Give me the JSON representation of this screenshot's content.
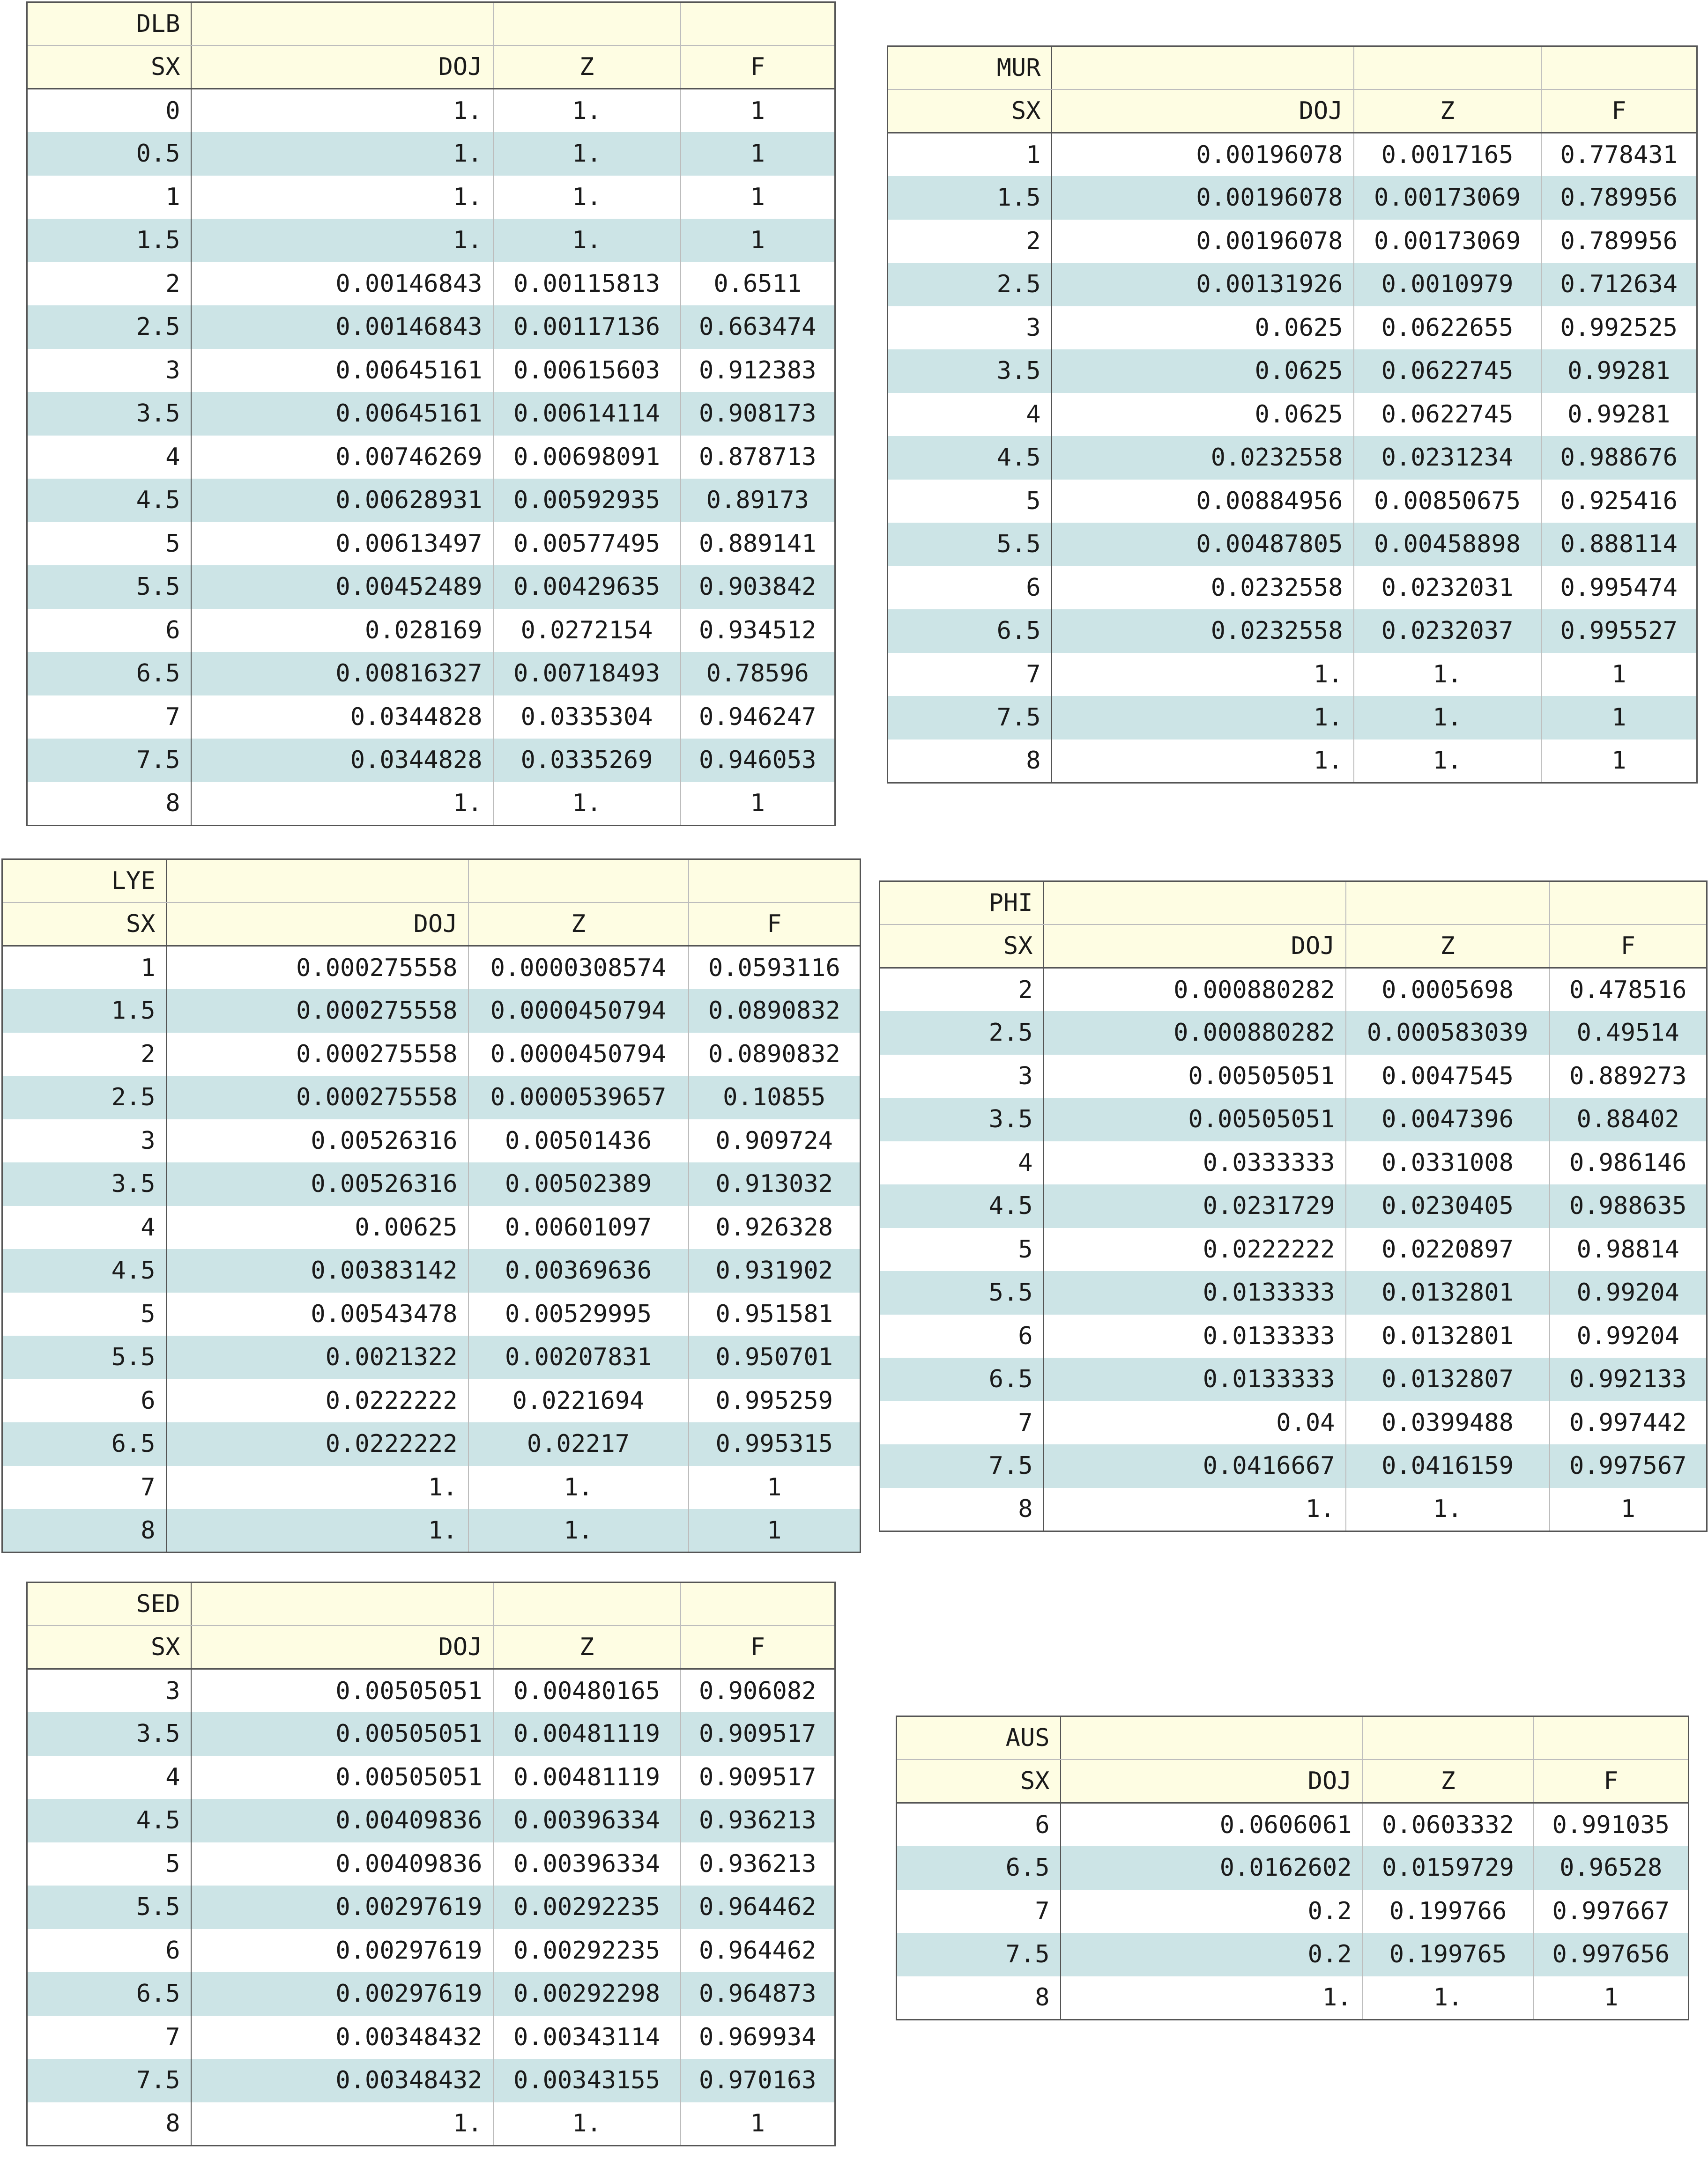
{
  "columns": [
    "SX",
    "DOJ",
    "Z",
    "F"
  ],
  "tables": [
    {
      "id": "dlb",
      "name": "DLB",
      "rows": [
        [
          "0",
          "1.",
          "1.",
          "1"
        ],
        [
          "0.5",
          "1.",
          "1.",
          "1"
        ],
        [
          "1",
          "1.",
          "1.",
          "1"
        ],
        [
          "1.5",
          "1.",
          "1.",
          "1"
        ],
        [
          "2",
          "0.00146843",
          "0.00115813",
          "0.6511"
        ],
        [
          "2.5",
          "0.00146843",
          "0.00117136",
          "0.663474"
        ],
        [
          "3",
          "0.00645161",
          "0.00615603",
          "0.912383"
        ],
        [
          "3.5",
          "0.00645161",
          "0.00614114",
          "0.908173"
        ],
        [
          "4",
          "0.00746269",
          "0.00698091",
          "0.878713"
        ],
        [
          "4.5",
          "0.00628931",
          "0.00592935",
          "0.89173"
        ],
        [
          "5",
          "0.00613497",
          "0.00577495",
          "0.889141"
        ],
        [
          "5.5",
          "0.00452489",
          "0.00429635",
          "0.903842"
        ],
        [
          "6",
          "0.028169",
          "0.0272154",
          "0.934512"
        ],
        [
          "6.5",
          "0.00816327",
          "0.00718493",
          "0.78596"
        ],
        [
          "7",
          "0.0344828",
          "0.0335304",
          "0.946247"
        ],
        [
          "7.5",
          "0.0344828",
          "0.0335269",
          "0.946053"
        ],
        [
          "8",
          "1.",
          "1.",
          "1"
        ]
      ]
    },
    {
      "id": "mur",
      "name": "MUR",
      "rows": [
        [
          "1",
          "0.00196078",
          "0.0017165",
          "0.778431"
        ],
        [
          "1.5",
          "0.00196078",
          "0.00173069",
          "0.789956"
        ],
        [
          "2",
          "0.00196078",
          "0.00173069",
          "0.789956"
        ],
        [
          "2.5",
          "0.00131926",
          "0.0010979",
          "0.712634"
        ],
        [
          "3",
          "0.0625",
          "0.0622655",
          "0.992525"
        ],
        [
          "3.5",
          "0.0625",
          "0.0622745",
          "0.99281"
        ],
        [
          "4",
          "0.0625",
          "0.0622745",
          "0.99281"
        ],
        [
          "4.5",
          "0.0232558",
          "0.0231234",
          "0.988676"
        ],
        [
          "5",
          "0.00884956",
          "0.00850675",
          "0.925416"
        ],
        [
          "5.5",
          "0.00487805",
          "0.00458898",
          "0.888114"
        ],
        [
          "6",
          "0.0232558",
          "0.0232031",
          "0.995474"
        ],
        [
          "6.5",
          "0.0232558",
          "0.0232037",
          "0.995527"
        ],
        [
          "7",
          "1.",
          "1.",
          "1"
        ],
        [
          "7.5",
          "1.",
          "1.",
          "1"
        ],
        [
          "8",
          "1.",
          "1.",
          "1"
        ]
      ]
    },
    {
      "id": "lye",
      "name": "LYE",
      "rows": [
        [
          "1",
          "0.000275558",
          "0.0000308574",
          "0.0593116"
        ],
        [
          "1.5",
          "0.000275558",
          "0.0000450794",
          "0.0890832"
        ],
        [
          "2",
          "0.000275558",
          "0.0000450794",
          "0.0890832"
        ],
        [
          "2.5",
          "0.000275558",
          "0.0000539657",
          "0.10855"
        ],
        [
          "3",
          "0.00526316",
          "0.00501436",
          "0.909724"
        ],
        [
          "3.5",
          "0.00526316",
          "0.00502389",
          "0.913032"
        ],
        [
          "4",
          "0.00625",
          "0.00601097",
          "0.926328"
        ],
        [
          "4.5",
          "0.00383142",
          "0.00369636",
          "0.931902"
        ],
        [
          "5",
          "0.00543478",
          "0.00529995",
          "0.951581"
        ],
        [
          "5.5",
          "0.0021322",
          "0.00207831",
          "0.950701"
        ],
        [
          "6",
          "0.0222222",
          "0.0221694",
          "0.995259"
        ],
        [
          "6.5",
          "0.0222222",
          "0.02217",
          "0.995315"
        ],
        [
          "7",
          "1.",
          "1.",
          "1"
        ],
        [
          "8",
          "1.",
          "1.",
          "1"
        ]
      ]
    },
    {
      "id": "phi",
      "name": "PHI",
      "rows": [
        [
          "2",
          "0.000880282",
          "0.0005698",
          "0.478516"
        ],
        [
          "2.5",
          "0.000880282",
          "0.000583039",
          "0.49514"
        ],
        [
          "3",
          "0.00505051",
          "0.0047545",
          "0.889273"
        ],
        [
          "3.5",
          "0.00505051",
          "0.0047396",
          "0.88402"
        ],
        [
          "4",
          "0.0333333",
          "0.0331008",
          "0.986146"
        ],
        [
          "4.5",
          "0.0231729",
          "0.0230405",
          "0.988635"
        ],
        [
          "5",
          "0.0222222",
          "0.0220897",
          "0.98814"
        ],
        [
          "5.5",
          "0.0133333",
          "0.0132801",
          "0.99204"
        ],
        [
          "6",
          "0.0133333",
          "0.0132801",
          "0.99204"
        ],
        [
          "6.5",
          "0.0133333",
          "0.0132807",
          "0.992133"
        ],
        [
          "7",
          "0.04",
          "0.0399488",
          "0.997442"
        ],
        [
          "7.5",
          "0.0416667",
          "0.0416159",
          "0.997567"
        ],
        [
          "8",
          "1.",
          "1.",
          "1"
        ]
      ]
    },
    {
      "id": "sed",
      "name": "SED",
      "rows": [
        [
          "3",
          "0.00505051",
          "0.00480165",
          "0.906082"
        ],
        [
          "3.5",
          "0.00505051",
          "0.00481119",
          "0.909517"
        ],
        [
          "4",
          "0.00505051",
          "0.00481119",
          "0.909517"
        ],
        [
          "4.5",
          "0.00409836",
          "0.00396334",
          "0.936213"
        ],
        [
          "5",
          "0.00409836",
          "0.00396334",
          "0.936213"
        ],
        [
          "5.5",
          "0.00297619",
          "0.00292235",
          "0.964462"
        ],
        [
          "6",
          "0.00297619",
          "0.00292235",
          "0.964462"
        ],
        [
          "6.5",
          "0.00297619",
          "0.00292298",
          "0.964873"
        ],
        [
          "7",
          "0.00348432",
          "0.00343114",
          "0.969934"
        ],
        [
          "7.5",
          "0.00348432",
          "0.00343155",
          "0.970163"
        ],
        [
          "8",
          "1.",
          "1.",
          "1"
        ]
      ]
    },
    {
      "id": "aus",
      "name": "AUS",
      "rows": [
        [
          "6",
          "0.0606061",
          "0.0603332",
          "0.991035"
        ],
        [
          "6.5",
          "0.0162602",
          "0.0159729",
          "0.96528"
        ],
        [
          "7",
          "0.2",
          "0.199766",
          "0.997667"
        ],
        [
          "7.5",
          "0.2",
          "0.199765",
          "0.997656"
        ],
        [
          "8",
          "1.",
          "1.",
          "1"
        ]
      ]
    }
  ]
}
